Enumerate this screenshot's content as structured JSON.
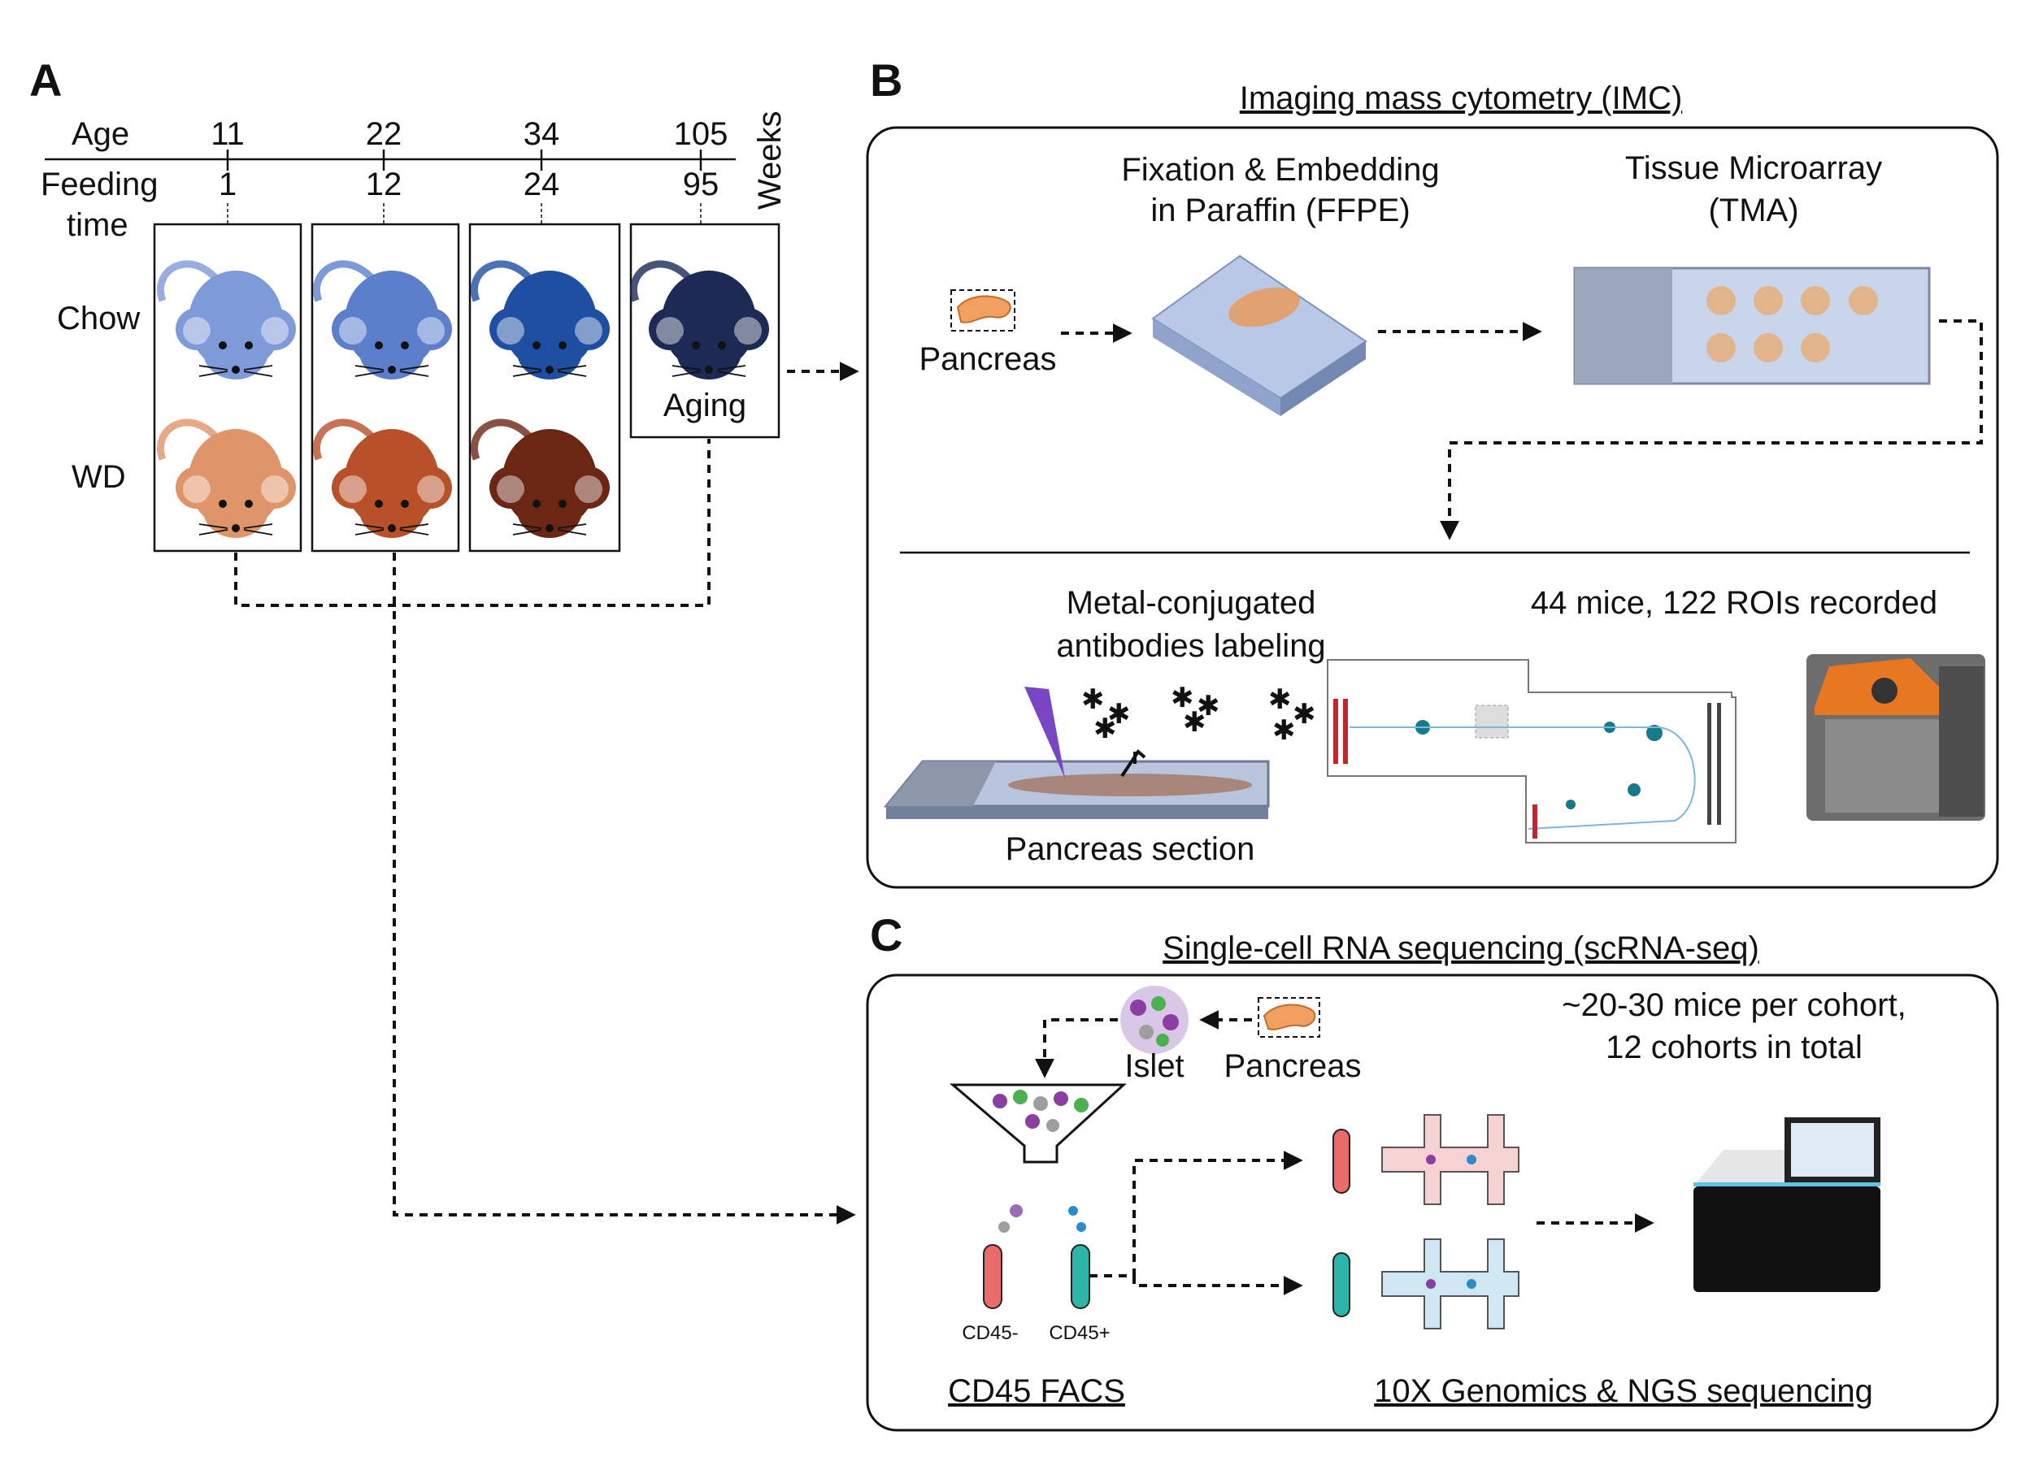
{
  "panel_a": {
    "letter": "A",
    "age_label": "Age",
    "feeding_label_1": "Feeding",
    "feeding_label_2": "time",
    "weeks_label": "Weeks",
    "ages": [
      "11",
      "22",
      "34",
      "105"
    ],
    "feeding_times": [
      "1",
      "12",
      "24",
      "95"
    ],
    "chow_label": "Chow",
    "wd_label": "WD",
    "aging_label": "Aging",
    "colors": {
      "chow": [
        "#7f9ad8",
        "#5c7fcc",
        "#1f4fa3",
        "#1c2a55"
      ],
      "wd": [
        "#e0946a",
        "#b8502a",
        "#6b2614"
      ]
    }
  },
  "panel_b": {
    "letter": "B",
    "title": "Imaging mass cytometry (IMC)",
    "pancreas_label": "Pancreas",
    "ffpe_label_1": "Fixation & Embedding",
    "ffpe_label_2": "in Paraffin (FFPE)",
    "tma_label_1": "Tissue Microarray",
    "tma_label_2": "(TMA)",
    "antibody_label_1": "Metal-conjugated",
    "antibody_label_2": "antibodies labeling",
    "stats_label": "44 mice, 122 ROIs recorded",
    "section_label": "Pancreas section"
  },
  "panel_c": {
    "letter": "C",
    "title": "Single-cell RNA sequencing (scRNA-seq)",
    "islet_label": "Islet",
    "pancreas_label": "Pancreas",
    "cohort_label_1": "~20-30 mice per cohort,",
    "cohort_label_2": "12 cohorts in total",
    "cd45_neg": "CD45-",
    "cd45_pos": "CD45+",
    "facs_label": "CD45 FACS",
    "genomics_label": "10X Genomics & NGS sequencing"
  }
}
